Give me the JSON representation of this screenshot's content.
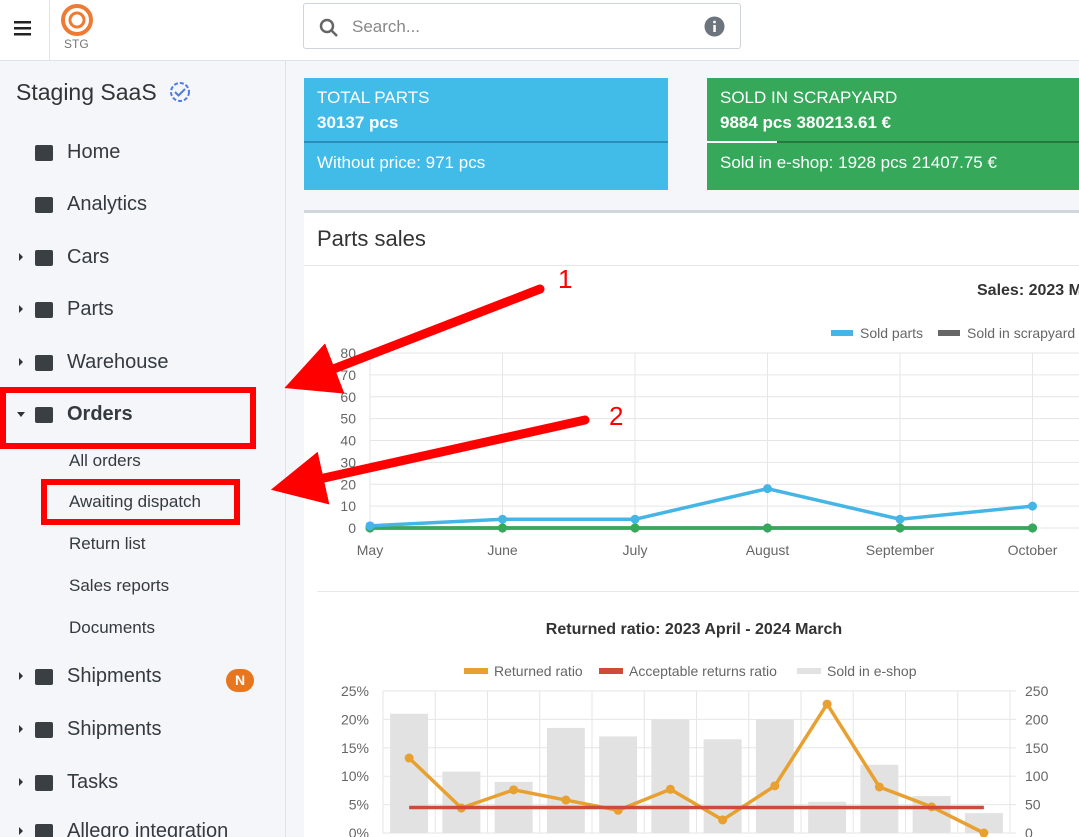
{
  "header": {
    "logo_text": "STG",
    "search_placeholder": "Search..."
  },
  "sidebar": {
    "brand": "Staging SaaS",
    "items": [
      "Home",
      "Analytics",
      "Cars",
      "Parts",
      "Warehouse",
      "Orders"
    ],
    "orders_sub": [
      "All orders",
      "Awaiting dispatch",
      "Return list",
      "Sales reports",
      "Documents"
    ],
    "items_after": [
      "Shipments",
      "Shipments",
      "Tasks",
      "Allegro integration"
    ],
    "badge": "N"
  },
  "annotations": [
    "1",
    "2"
  ],
  "info_boxes": [
    {
      "title": "TOTAL PARTS",
      "value": "30137 pcs",
      "footer": "Without price: 971 pcs",
      "color": "#41bbe8"
    },
    {
      "title": "SOLD IN SCRAPYARD",
      "value": "9884 pcs 380213.61 €",
      "footer": "Sold in e-shop: 1928 pcs 21407.75 €",
      "color": "#35a85a"
    }
  ],
  "card_title": "Parts sales",
  "sales_chart": {
    "type": "line",
    "title": "Sales: 2023 M",
    "categories": [
      "May",
      "June",
      "July",
      "August",
      "September",
      "October"
    ],
    "series": [
      {
        "name": "Sold parts",
        "color": "#45b5e6",
        "values": [
          1,
          4,
          4,
          18,
          4,
          10
        ]
      },
      {
        "name": "Sold in scrapyard",
        "color": "#666666",
        "values": [
          0,
          0,
          0,
          0,
          0,
          0
        ]
      },
      {
        "color": "#35a85a",
        "values": [
          0,
          0,
          0,
          0,
          0,
          0
        ]
      }
    ],
    "ylim": [
      0,
      80
    ],
    "yticks": [
      0,
      10,
      20,
      30,
      40,
      50,
      60,
      70,
      80
    ],
    "grid": true
  },
  "returns_chart": {
    "type": "bar-line",
    "title": "Returned ratio: 2023 April - 2024 March",
    "series": [
      {
        "name": "Returned ratio",
        "color": "#e8a030",
        "type": "line",
        "values": [
          13.2,
          4.4,
          7.6,
          5.8,
          4.0,
          7.7,
          2.3,
          8.3,
          22.7,
          8.1,
          4.6,
          0
        ]
      },
      {
        "name": "Acceptable returns ratio",
        "color": "#d04a3a",
        "type": "line",
        "values": [
          4.5,
          4.5,
          4.5,
          4.5,
          4.5,
          4.5,
          4.5,
          4.5,
          4.5,
          4.5,
          4.5,
          4.5
        ]
      },
      {
        "name": "Sold in e-shop",
        "color": "#e2e2e2",
        "type": "bar",
        "axis": "y2",
        "values": [
          210,
          108,
          90,
          185,
          170,
          200,
          165,
          200,
          55,
          120,
          65,
          35
        ]
      }
    ],
    "ylim": [
      0,
      25
    ],
    "yticks": [
      {
        "value": 0,
        "label": "0%"
      },
      {
        "value": 5,
        "label": "5%"
      },
      {
        "value": 10,
        "label": "10%"
      },
      {
        "value": 15,
        "label": "15%"
      },
      {
        "value": 20,
        "label": "20%"
      },
      {
        "value": 25,
        "label": "25%"
      }
    ],
    "y2lim": [
      0,
      250
    ],
    "y2ticks": [
      0,
      50,
      100,
      150,
      200,
      250
    ],
    "grid": true
  }
}
